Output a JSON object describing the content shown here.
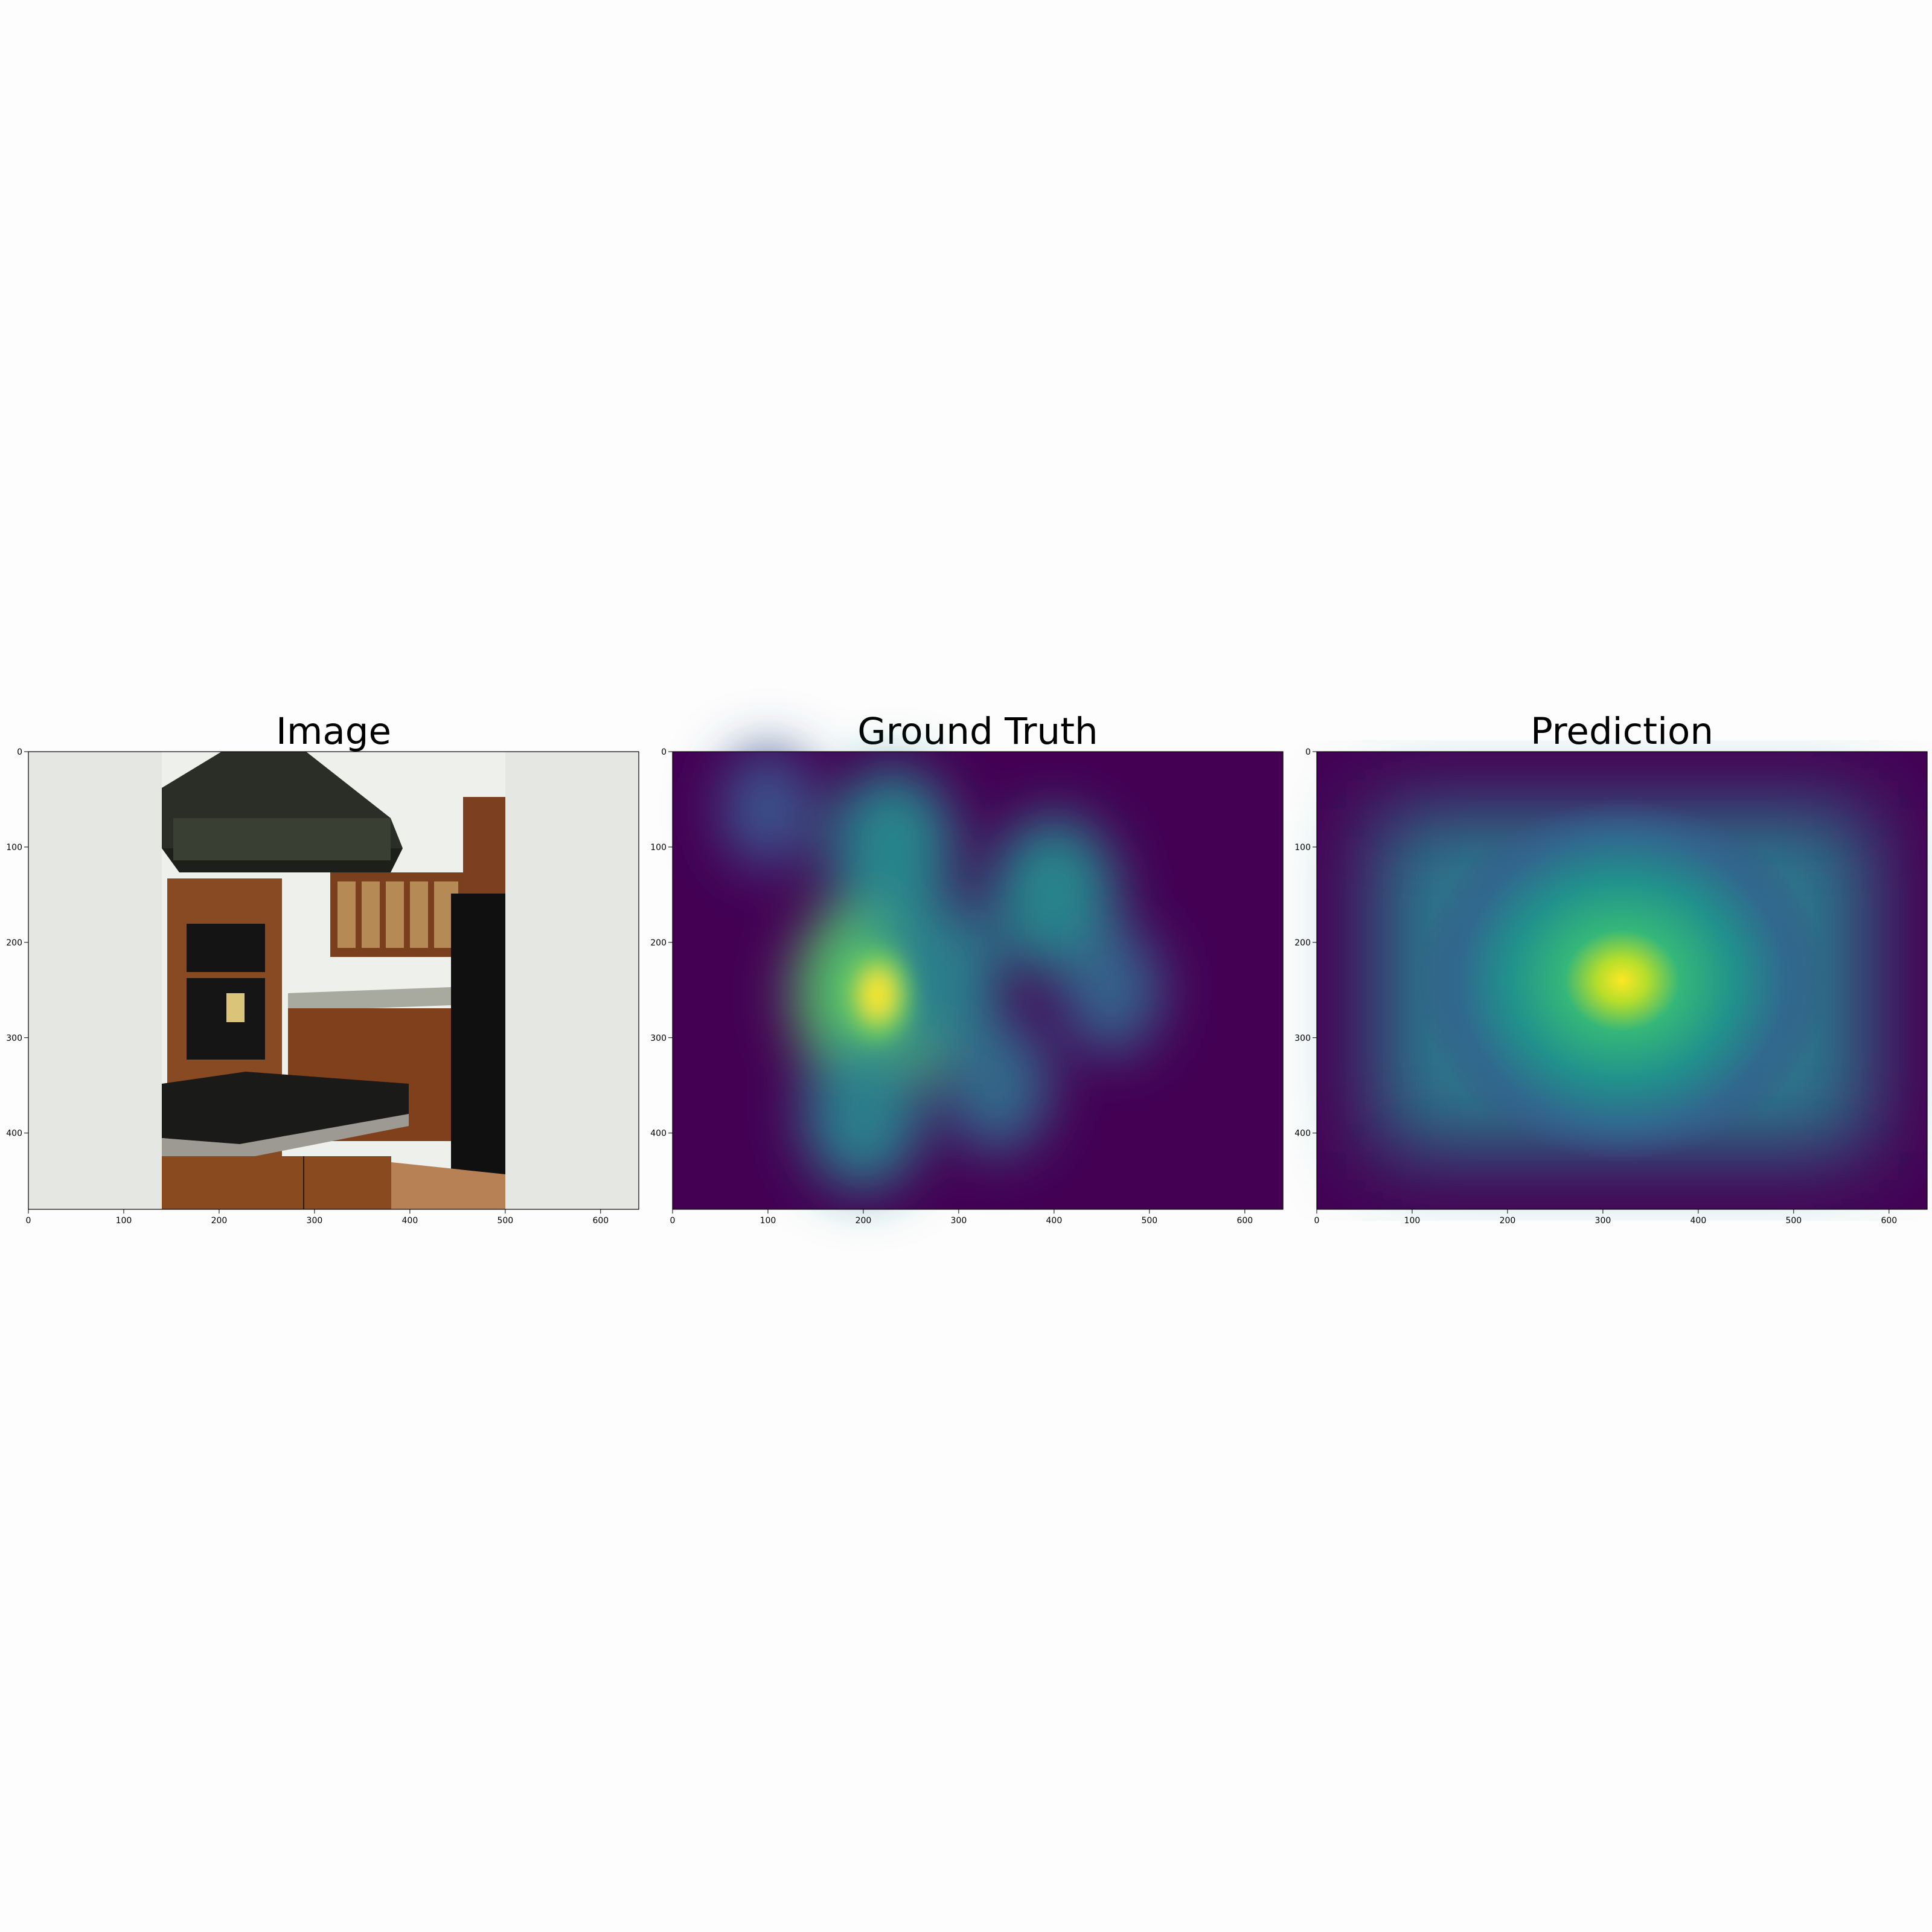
{
  "chart_data": [
    {
      "type": "image",
      "title": "Image",
      "xlim": [
        0,
        640
      ],
      "ylim": [
        480,
        0
      ],
      "xticks": [
        0,
        100,
        200,
        300,
        400,
        500,
        600
      ],
      "yticks": [
        0,
        100,
        200,
        300,
        400
      ],
      "content": {
        "photo_x_range": [
          140,
          500
        ],
        "background_color": "#e5e7e3",
        "scene": "kitchen with range hood, wood cabinets, wall oven, microwave, refrigerator, granite island"
      }
    },
    {
      "type": "heatmap",
      "title": "Ground Truth",
      "colormap": "viridis",
      "xlim": [
        0,
        640
      ],
      "ylim": [
        480,
        0
      ],
      "xticks": [
        0,
        100,
        200,
        300,
        400,
        500,
        600
      ],
      "yticks": [
        0,
        100,
        200,
        300,
        400
      ],
      "hotspots": [
        {
          "x": 215,
          "y": 255,
          "intensity": 1.0
        },
        {
          "x": 230,
          "y": 100,
          "intensity": 0.55
        },
        {
          "x": 400,
          "y": 150,
          "intensity": 0.55
        },
        {
          "x": 280,
          "y": 235,
          "intensity": 0.5
        },
        {
          "x": 200,
          "y": 380,
          "intensity": 0.5
        },
        {
          "x": 340,
          "y": 350,
          "intensity": 0.35
        },
        {
          "x": 460,
          "y": 250,
          "intensity": 0.3
        },
        {
          "x": 100,
          "y": 60,
          "intensity": 0.2
        }
      ]
    },
    {
      "type": "heatmap",
      "title": "Prediction",
      "colormap": "viridis",
      "xlim": [
        0,
        640
      ],
      "ylim": [
        480,
        0
      ],
      "xticks": [
        0,
        100,
        200,
        300,
        400,
        500,
        600
      ],
      "yticks": [
        0,
        100,
        200,
        300,
        400
      ],
      "hotspots": [
        {
          "x": 320,
          "y": 240,
          "intensity": 1.0
        }
      ],
      "background_band": {
        "x_range": [
          60,
          580
        ],
        "y_range": [
          60,
          420
        ],
        "intensity": 0.3
      }
    }
  ]
}
